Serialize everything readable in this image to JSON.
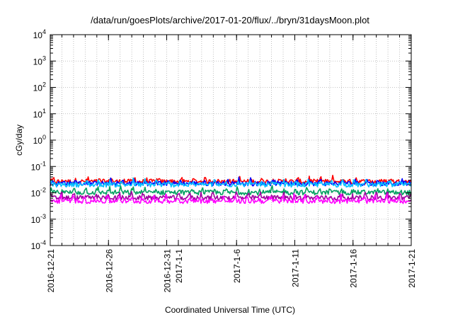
{
  "chart_data": {
    "type": "line",
    "title": "/data/run/goesPlots/archive/2017-01-20/flux/../bryn/31daysMoon.plot",
    "xlabel": "Coordinated Universal Time (UTC)",
    "ylabel": "cGy/day",
    "y_scale": "log",
    "ylim": [
      0.0001,
      10000
    ],
    "y_ticks": [
      {
        "value": 0.0001,
        "base": "10",
        "exp": "-4"
      },
      {
        "value": 0.001,
        "base": "10",
        "exp": "-3"
      },
      {
        "value": 0.01,
        "base": "10",
        "exp": "-2"
      },
      {
        "value": 0.1,
        "base": "10",
        "exp": "-1"
      },
      {
        "value": 1,
        "base": "10",
        "exp": "0"
      },
      {
        "value": 10,
        "base": "10",
        "exp": "1"
      },
      {
        "value": 100,
        "base": "10",
        "exp": "2"
      },
      {
        "value": 1000,
        "base": "10",
        "exp": "3"
      },
      {
        "value": 10000,
        "base": "10",
        "exp": "4"
      }
    ],
    "xlim": [
      "2016-12-21",
      "2017-01-21"
    ],
    "x_ticks": [
      {
        "date": "2016-12-21",
        "label": "2016-12-21"
      },
      {
        "date": "2016-12-26",
        "label": "2016-12-26"
      },
      {
        "date": "2016-12-31",
        "label": "2016-12-31"
      },
      {
        "date": "2017-01-01",
        "label": "2017-1-1"
      },
      {
        "date": "2017-01-06",
        "label": "2017-1-6"
      },
      {
        "date": "2017-01-11",
        "label": "2017-1-11"
      },
      {
        "date": "2017-01-16",
        "label": "2017-1-16"
      },
      {
        "date": "2017-01-21",
        "label": "2017-1-21"
      }
    ],
    "grid": true,
    "legend": "none",
    "series": [
      {
        "color": "#ff0000",
        "base": 0.024,
        "peak": 0.05
      },
      {
        "color": "#0000ff",
        "base": 0.02,
        "peak": 0.045
      },
      {
        "color": "#00bfff",
        "base": 0.018,
        "peak": 0.04
      },
      {
        "color": "#00a060",
        "base": 0.009,
        "peak": 0.022
      },
      {
        "color": "#a000a0",
        "base": 0.0055,
        "peak": 0.016
      },
      {
        "color": "#ff00ff",
        "base": 0.004,
        "peak": 0.014
      }
    ]
  }
}
